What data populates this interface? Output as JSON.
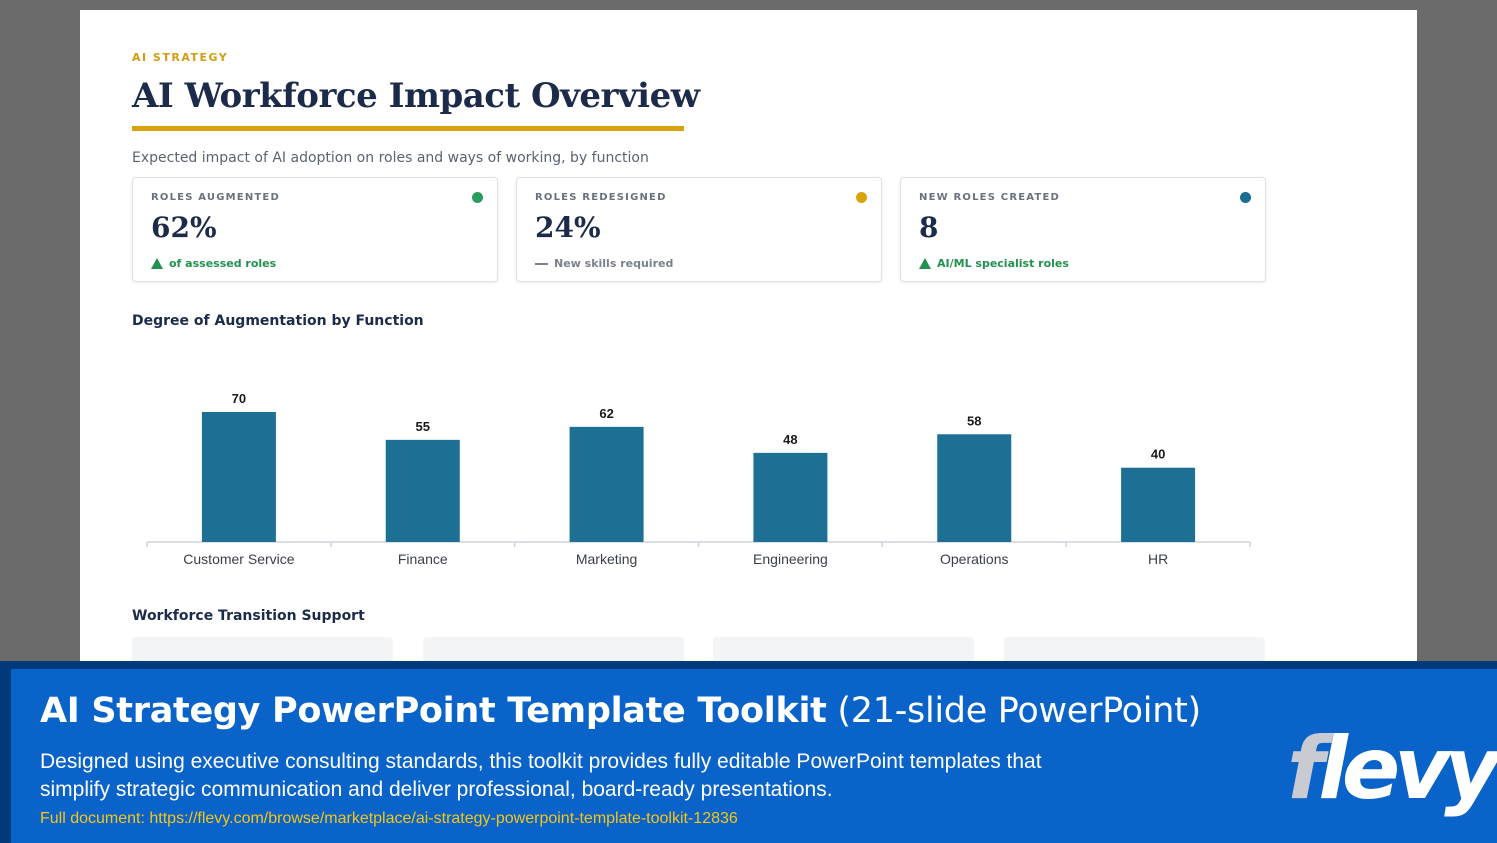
{
  "slide": {
    "eyebrow": "AI STRATEGY",
    "title": "AI Workforce Impact Overview",
    "subtitle": "Expected impact of AI adoption on roles and ways of working, by function",
    "kpis": [
      {
        "label": "ROLES AUGMENTED",
        "value": "62%",
        "note": "of assessed roles",
        "trend": "up",
        "dot_color": "#2a9d5c"
      },
      {
        "label": "ROLES REDESIGNED",
        "value": "24%",
        "note": "New skills required",
        "trend": "flat",
        "dot_color": "#d9a20f"
      },
      {
        "label": "NEW ROLES CREATED",
        "value": "8",
        "note": "AI/ML specialist roles",
        "trend": "up",
        "dot_color": "#1a6e8f"
      }
    ],
    "chart_section_title": "Degree of Augmentation by Function",
    "support_section_title": "Workforce Transition Support"
  },
  "chart_data": {
    "type": "bar",
    "title": "Degree of Augmentation by Function",
    "categories": [
      "Customer Service",
      "Finance",
      "Marketing",
      "Engineering",
      "Operations",
      "HR"
    ],
    "values": [
      70,
      55,
      62,
      48,
      58,
      40
    ],
    "xlabel": "",
    "ylabel": "",
    "ylim": [
      0,
      70
    ],
    "grid": false,
    "data_labels": true,
    "bar_color": "#1d7093"
  },
  "banner": {
    "title_bold": "AI Strategy PowerPoint Template Toolkit",
    "title_light": "(21-slide PowerPoint)",
    "description": "Designed using executive consulting standards, this toolkit provides fully editable PowerPoint templates that simplify strategic communication and deliver professional, board-ready presentations.",
    "link": "Full document: https://flevy.com/browse/marketplace/ai-strategy-powerpoint-template-toolkit-12836",
    "logo": "flevy"
  },
  "colors": {
    "navy": "#1c2b4a",
    "gold": "#d9a20f",
    "teal": "#1d7093",
    "green": "#239150",
    "banner_blue": "#0a63c8",
    "link_yellow": "#f5c518"
  }
}
